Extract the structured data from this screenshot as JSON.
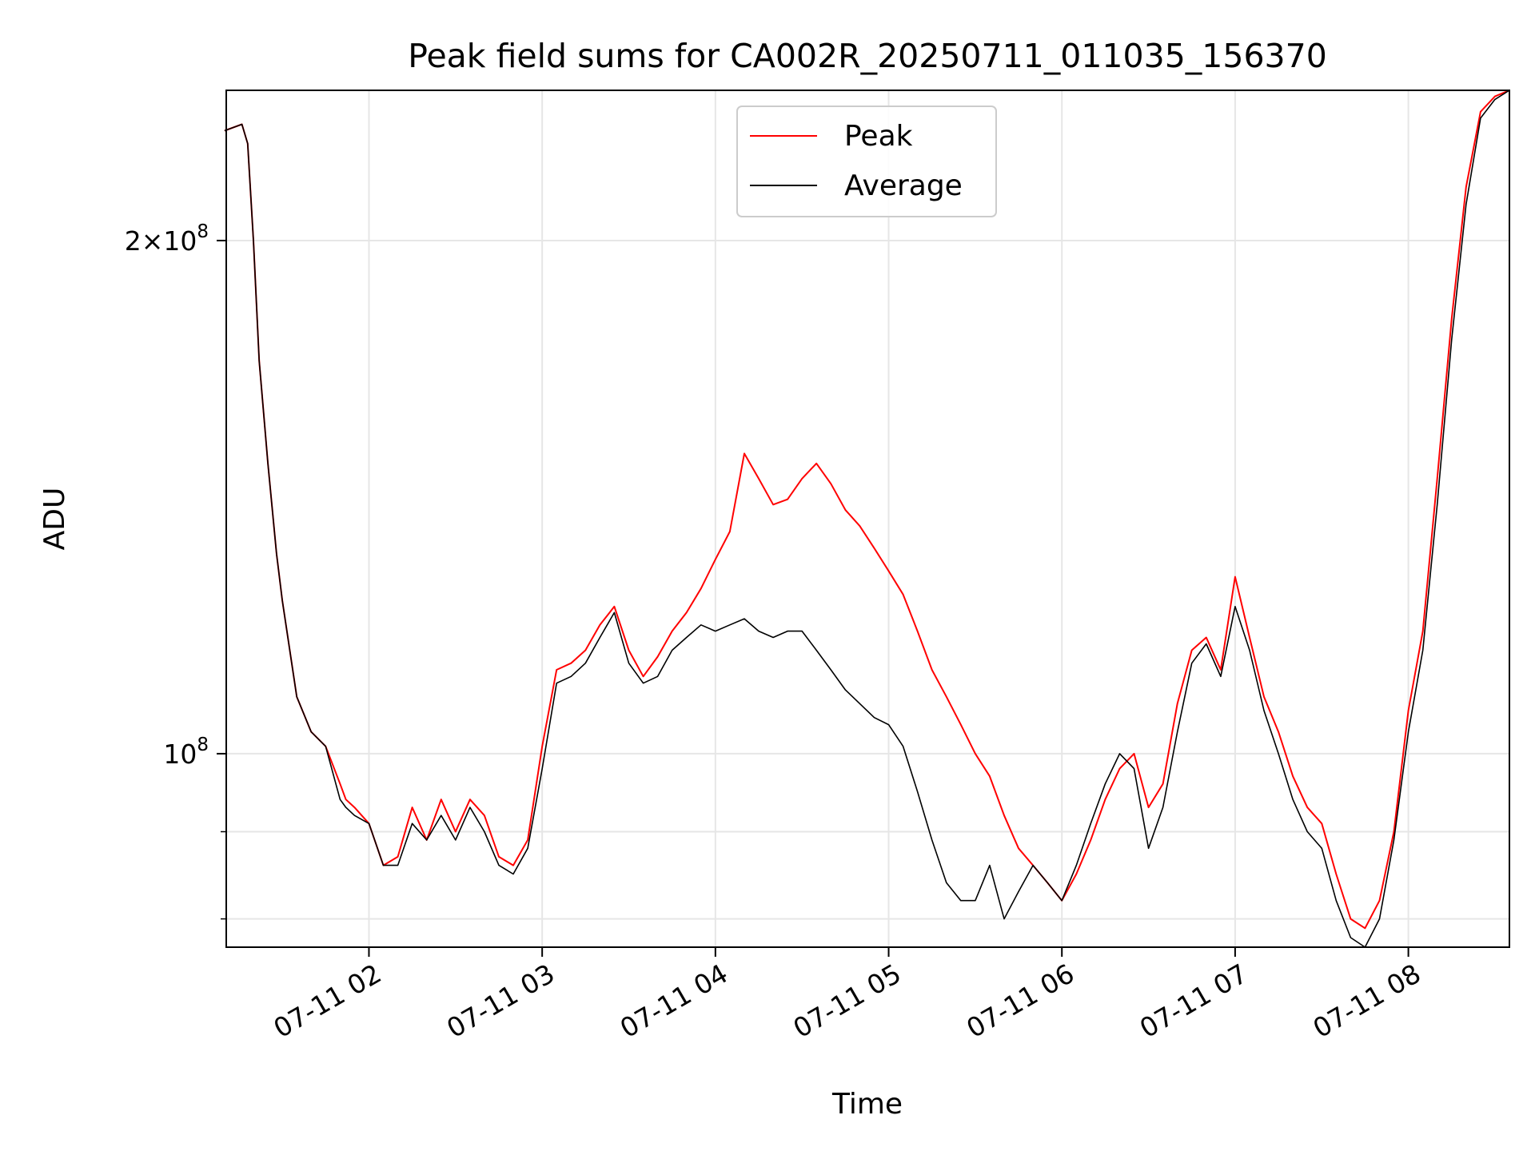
{
  "chart_data": {
    "type": "line",
    "title": "Peak field sums for CA002R_20250711_011035_156370",
    "xlabel": "Time",
    "ylabel": "ADU",
    "yscale": "log",
    "xlim": [
      "2025-07-11 01:10:35",
      "2025-07-11 08:35:00"
    ],
    "ylim": [
      77000000,
      245000000
    ],
    "grid": true,
    "legend_position": "top-center",
    "x_ticks": [
      {
        "value": "2025-07-11 02:00",
        "label": "07-11 02"
      },
      {
        "value": "2025-07-11 03:00",
        "label": "07-11 03"
      },
      {
        "value": "2025-07-11 04:00",
        "label": "07-11 04"
      },
      {
        "value": "2025-07-11 05:00",
        "label": "07-11 05"
      },
      {
        "value": "2025-07-11 06:00",
        "label": "07-11 06"
      },
      {
        "value": "2025-07-11 07:00",
        "label": "07-11 07"
      },
      {
        "value": "2025-07-11 08:00",
        "label": "07-11 08"
      }
    ],
    "y_ticks": [
      {
        "value": 100000000,
        "mantissa": "",
        "times": "",
        "base": "10",
        "exponent": "8"
      },
      {
        "value": 200000000,
        "mantissa": "2",
        "times": "×",
        "base": "10",
        "exponent": "8"
      }
    ],
    "y_minor_ticks": [
      90000000,
      80000000
    ],
    "series": [
      {
        "name": "Peak",
        "color": "#ff0000",
        "x": [
          "01:10",
          "01:16",
          "01:18",
          "01:20",
          "01:22",
          "01:25",
          "01:28",
          "01:30",
          "01:35",
          "01:40",
          "01:45",
          "01:50",
          "01:52",
          "01:55",
          "02:00",
          "02:05",
          "02:10",
          "02:15",
          "02:20",
          "02:25",
          "02:30",
          "02:35",
          "02:40",
          "02:45",
          "02:50",
          "02:55",
          "03:00",
          "03:05",
          "03:10",
          "03:15",
          "03:20",
          "03:25",
          "03:30",
          "03:35",
          "03:40",
          "03:45",
          "03:50",
          "03:55",
          "04:00",
          "04:05",
          "04:10",
          "04:15",
          "04:20",
          "04:25",
          "04:30",
          "04:35",
          "04:40",
          "04:45",
          "04:50",
          "04:55",
          "05:00",
          "05:05",
          "05:10",
          "05:15",
          "05:20",
          "05:25",
          "05:30",
          "05:35",
          "05:40",
          "05:45",
          "05:50",
          "05:55",
          "06:00",
          "06:05",
          "06:10",
          "06:15",
          "06:20",
          "06:25",
          "06:30",
          "06:35",
          "06:40",
          "06:45",
          "06:50",
          "06:55",
          "07:00",
          "07:05",
          "07:10",
          "07:15",
          "07:20",
          "07:25",
          "07:30",
          "07:35",
          "07:40",
          "07:45",
          "07:50",
          "07:55",
          "08:00",
          "08:05",
          "08:10",
          "08:15",
          "08:20",
          "08:25",
          "08:30",
          "08:35"
        ],
        "y": [
          232000000,
          234000000,
          228000000,
          200000000,
          170000000,
          148000000,
          131000000,
          123000000,
          108000000,
          103000000,
          101000000,
          96000000,
          94000000,
          93000000,
          91000000,
          86000000,
          87000000,
          93000000,
          89000000,
          94000000,
          90000000,
          94000000,
          92000000,
          87000000,
          86000000,
          89000000,
          101000000,
          112000000,
          113000000,
          115000000,
          119000000,
          122000000,
          115000000,
          111000000,
          114000000,
          118000000,
          121000000,
          125000000,
          130000000,
          135000000,
          150000000,
          145000000,
          140000000,
          141000000,
          145000000,
          148000000,
          144000000,
          139000000,
          136000000,
          132000000,
          128000000,
          124000000,
          118000000,
          112000000,
          108000000,
          104000000,
          100000000,
          97000000,
          92000000,
          88000000,
          86000000,
          84000000,
          82000000,
          85000000,
          89000000,
          94000000,
          98000000,
          100000000,
          93000000,
          96000000,
          107000000,
          115000000,
          117000000,
          112000000,
          127000000,
          117000000,
          108000000,
          103000000,
          97000000,
          93000000,
          91000000,
          85000000,
          80000000,
          79000000,
          82000000,
          90000000,
          106000000,
          118000000,
          145000000,
          180000000,
          215000000,
          238000000,
          243000000,
          245000000
        ]
      },
      {
        "name": "Average",
        "color": "#000000",
        "x": [
          "01:10",
          "01:16",
          "01:18",
          "01:20",
          "01:22",
          "01:25",
          "01:28",
          "01:30",
          "01:35",
          "01:40",
          "01:45",
          "01:50",
          "01:52",
          "01:55",
          "02:00",
          "02:05",
          "02:10",
          "02:15",
          "02:20",
          "02:25",
          "02:30",
          "02:35",
          "02:40",
          "02:45",
          "02:50",
          "02:55",
          "03:00",
          "03:05",
          "03:10",
          "03:15",
          "03:20",
          "03:25",
          "03:30",
          "03:35",
          "03:40",
          "03:45",
          "03:50",
          "03:55",
          "04:00",
          "04:05",
          "04:10",
          "04:15",
          "04:20",
          "04:25",
          "04:30",
          "04:35",
          "04:40",
          "04:45",
          "04:50",
          "04:55",
          "05:00",
          "05:05",
          "05:10",
          "05:15",
          "05:20",
          "05:25",
          "05:30",
          "05:35",
          "05:40",
          "05:45",
          "05:50",
          "05:55",
          "06:00",
          "06:05",
          "06:10",
          "06:15",
          "06:20",
          "06:25",
          "06:30",
          "06:35",
          "06:40",
          "06:45",
          "06:50",
          "06:55",
          "07:00",
          "07:05",
          "07:10",
          "07:15",
          "07:20",
          "07:25",
          "07:30",
          "07:35",
          "07:40",
          "07:45",
          "07:50",
          "07:55",
          "08:00",
          "08:05",
          "08:10",
          "08:15",
          "08:20",
          "08:25",
          "08:30",
          "08:35"
        ],
        "y": [
          232000000,
          234000000,
          228000000,
          200000000,
          170000000,
          148000000,
          131000000,
          123000000,
          108000000,
          103000000,
          101000000,
          94000000,
          93000000,
          92000000,
          91000000,
          86000000,
          86000000,
          91000000,
          89000000,
          92000000,
          89000000,
          93000000,
          90000000,
          86000000,
          85000000,
          88000000,
          98000000,
          110000000,
          111000000,
          113000000,
          117000000,
          121000000,
          113000000,
          110000000,
          111000000,
          115000000,
          117000000,
          119000000,
          118000000,
          119000000,
          120000000,
          118000000,
          117000000,
          118000000,
          118000000,
          115000000,
          112000000,
          109000000,
          107000000,
          105000000,
          104000000,
          101000000,
          95000000,
          89000000,
          84000000,
          82000000,
          82000000,
          86000000,
          80000000,
          83000000,
          86000000,
          84000000,
          82000000,
          86000000,
          91000000,
          96000000,
          100000000,
          98000000,
          88000000,
          93000000,
          103000000,
          113000000,
          116000000,
          111000000,
          122000000,
          115000000,
          106000000,
          100000000,
          94000000,
          90000000,
          88000000,
          82000000,
          78000000,
          77000000,
          80000000,
          89000000,
          103000000,
          115000000,
          140000000,
          175000000,
          210000000,
          236000000,
          242000000,
          245000000
        ]
      }
    ]
  }
}
